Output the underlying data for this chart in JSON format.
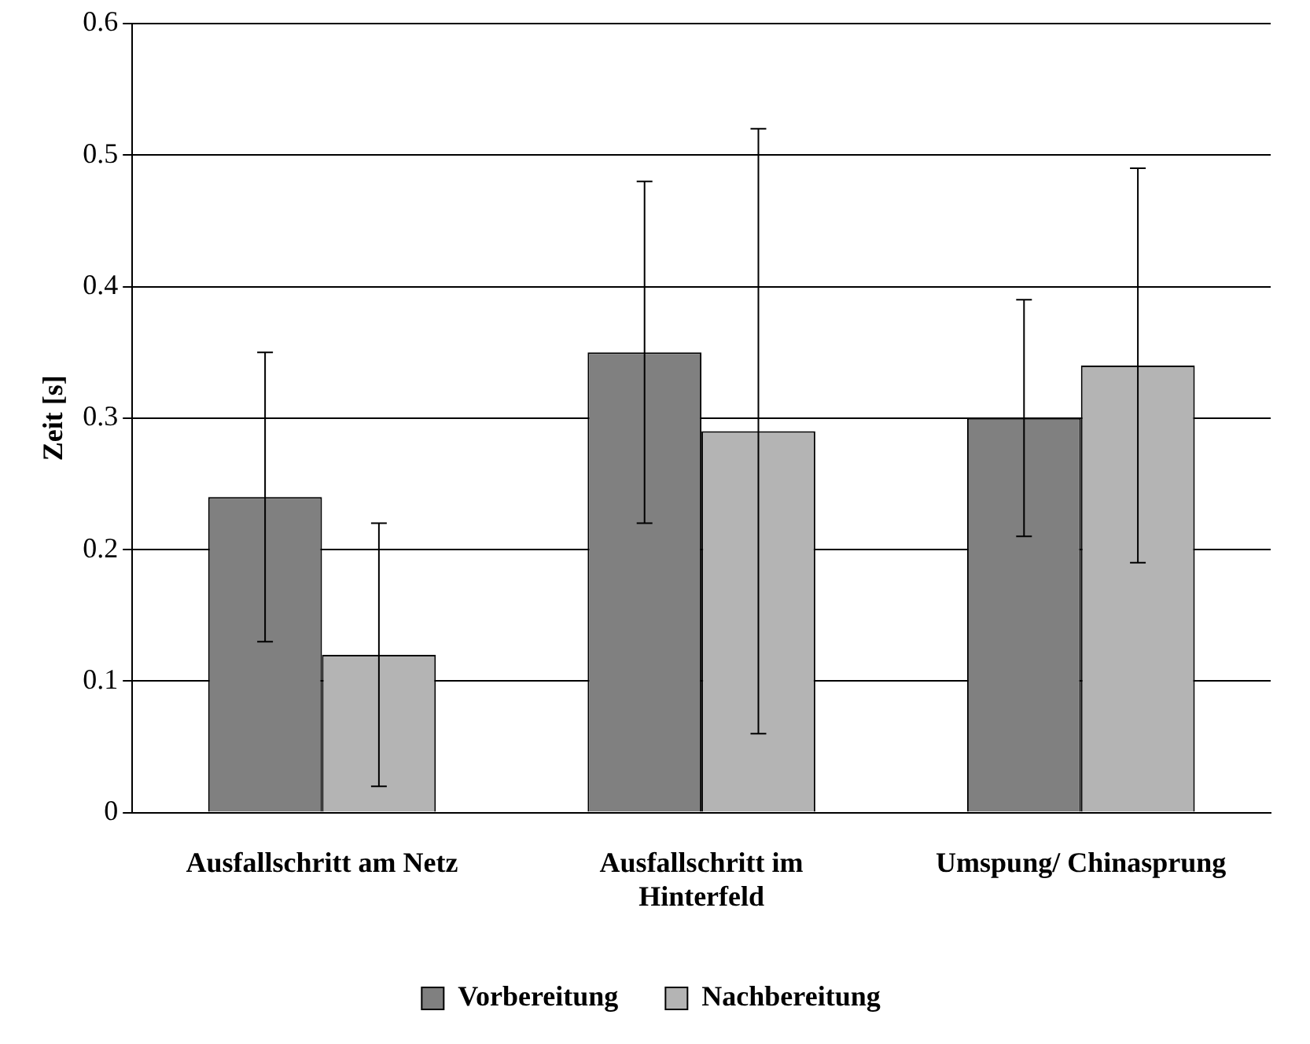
{
  "chart_data": {
    "type": "bar",
    "ylabel": "Zeit [s]",
    "categories": [
      "Ausfallschritt am Netz",
      "Ausfallschritt im Hinterfeld",
      "Umspung/ Chinasprung"
    ],
    "series": [
      {
        "name": "Vorbereitung",
        "color": "#808080",
        "values": [
          0.24,
          0.35,
          0.3
        ],
        "errors": [
          [
            0.13,
            0.35
          ],
          [
            0.22,
            0.48
          ],
          [
            0.21,
            0.39
          ]
        ]
      },
      {
        "name": "Nachbereitung",
        "color": "#b4b4b4",
        "values": [
          0.12,
          0.29,
          0.34
        ],
        "errors": [
          [
            0.02,
            0.22
          ],
          [
            0.06,
            0.52
          ],
          [
            0.19,
            0.49
          ]
        ]
      }
    ],
    "ylim": [
      0,
      0.6
    ],
    "yticks": [
      0,
      0.1,
      0.2,
      0.3,
      0.4,
      0.5,
      0.6
    ],
    "grid": "y",
    "legend": "bottom"
  }
}
